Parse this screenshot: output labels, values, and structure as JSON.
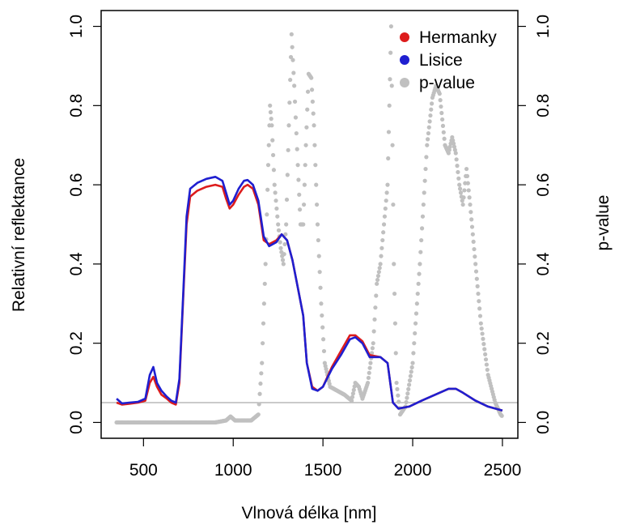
{
  "chart_data": {
    "type": "line",
    "title": "",
    "xlabel": "Vlnová délka [nm]",
    "ylabel": "Relativní reflektance",
    "y2label": "p-value",
    "xlim": [
      350,
      2500
    ],
    "ylim": [
      0,
      1
    ],
    "y2lim": [
      0,
      1
    ],
    "xticks": [
      "500",
      "1000",
      "1500",
      "2000",
      "2500"
    ],
    "yticks": [
      "0.0",
      "0.2",
      "0.4",
      "0.6",
      "0.8",
      "1.0"
    ],
    "y2ticks": [
      "0.0",
      "0.2",
      "0.4",
      "0.6",
      "0.8",
      "1.0"
    ],
    "grid": false,
    "legend_position": "top-right",
    "reference_line": {
      "axis": "y2",
      "value": 0.05,
      "color": "#aaaaaa"
    },
    "series": [
      {
        "name": "Hermanky",
        "color": "#dd1c1c",
        "style": "line",
        "axis": "left",
        "points": [
          [
            350,
            0.05
          ],
          [
            380,
            0.045
          ],
          [
            420,
            0.047
          ],
          [
            470,
            0.05
          ],
          [
            510,
            0.055
          ],
          [
            535,
            0.1
          ],
          [
            555,
            0.115
          ],
          [
            575,
            0.09
          ],
          [
            600,
            0.07
          ],
          [
            630,
            0.06
          ],
          [
            655,
            0.05
          ],
          [
            680,
            0.045
          ],
          [
            700,
            0.1
          ],
          [
            720,
            0.3
          ],
          [
            740,
            0.5
          ],
          [
            760,
            0.57
          ],
          [
            800,
            0.585
          ],
          [
            850,
            0.595
          ],
          [
            900,
            0.6
          ],
          [
            940,
            0.595
          ],
          [
            960,
            0.565
          ],
          [
            980,
            0.54
          ],
          [
            1000,
            0.55
          ],
          [
            1030,
            0.575
          ],
          [
            1060,
            0.595
          ],
          [
            1080,
            0.6
          ],
          [
            1110,
            0.59
          ],
          [
            1140,
            0.55
          ],
          [
            1170,
            0.46
          ],
          [
            1200,
            0.45
          ],
          [
            1240,
            0.46
          ],
          [
            1270,
            0.475
          ],
          [
            1300,
            0.46
          ],
          [
            1330,
            0.41
          ],
          [
            1360,
            0.34
          ],
          [
            1390,
            0.27
          ],
          [
            1410,
            0.15
          ],
          [
            1440,
            0.09
          ],
          [
            1470,
            0.08
          ],
          [
            1500,
            0.09
          ],
          [
            1550,
            0.14
          ],
          [
            1600,
            0.18
          ],
          [
            1650,
            0.22
          ],
          [
            1680,
            0.22
          ],
          [
            1720,
            0.205
          ],
          [
            1760,
            0.17
          ],
          [
            1820,
            0.165
          ],
          [
            1860,
            0.15
          ],
          [
            1890,
            0.05
          ],
          [
            1920,
            0.035
          ],
          [
            1980,
            0.04
          ],
          [
            2050,
            0.055
          ],
          [
            2100,
            0.065
          ],
          [
            2150,
            0.075
          ],
          [
            2200,
            0.085
          ],
          [
            2240,
            0.085
          ],
          [
            2280,
            0.075
          ],
          [
            2350,
            0.055
          ],
          [
            2420,
            0.04
          ],
          [
            2500,
            0.03
          ]
        ]
      },
      {
        "name": "Lisice",
        "color": "#1f1fd0",
        "style": "line",
        "axis": "left",
        "points": [
          [
            350,
            0.06
          ],
          [
            380,
            0.048
          ],
          [
            420,
            0.05
          ],
          [
            470,
            0.052
          ],
          [
            510,
            0.06
          ],
          [
            535,
            0.12
          ],
          [
            555,
            0.14
          ],
          [
            575,
            0.1
          ],
          [
            600,
            0.08
          ],
          [
            630,
            0.065
          ],
          [
            655,
            0.055
          ],
          [
            680,
            0.05
          ],
          [
            700,
            0.11
          ],
          [
            720,
            0.31
          ],
          [
            740,
            0.52
          ],
          [
            760,
            0.59
          ],
          [
            800,
            0.605
          ],
          [
            850,
            0.615
          ],
          [
            900,
            0.62
          ],
          [
            940,
            0.61
          ],
          [
            960,
            0.58
          ],
          [
            980,
            0.55
          ],
          [
            1000,
            0.56
          ],
          [
            1030,
            0.59
          ],
          [
            1060,
            0.61
          ],
          [
            1080,
            0.612
          ],
          [
            1110,
            0.6
          ],
          [
            1140,
            0.56
          ],
          [
            1170,
            0.47
          ],
          [
            1200,
            0.445
          ],
          [
            1240,
            0.455
          ],
          [
            1270,
            0.475
          ],
          [
            1300,
            0.46
          ],
          [
            1330,
            0.41
          ],
          [
            1360,
            0.34
          ],
          [
            1390,
            0.27
          ],
          [
            1410,
            0.15
          ],
          [
            1440,
            0.085
          ],
          [
            1470,
            0.08
          ],
          [
            1500,
            0.09
          ],
          [
            1550,
            0.135
          ],
          [
            1600,
            0.17
          ],
          [
            1650,
            0.21
          ],
          [
            1680,
            0.215
          ],
          [
            1720,
            0.2
          ],
          [
            1760,
            0.165
          ],
          [
            1820,
            0.165
          ],
          [
            1860,
            0.15
          ],
          [
            1890,
            0.05
          ],
          [
            1920,
            0.035
          ],
          [
            1980,
            0.04
          ],
          [
            2050,
            0.055
          ],
          [
            2100,
            0.065
          ],
          [
            2150,
            0.075
          ],
          [
            2200,
            0.085
          ],
          [
            2240,
            0.085
          ],
          [
            2280,
            0.075
          ],
          [
            2350,
            0.055
          ],
          [
            2420,
            0.04
          ],
          [
            2500,
            0.03
          ]
        ]
      },
      {
        "name": "p-value",
        "color": "#c0c0c0",
        "style": "points",
        "axis": "right",
        "points": [
          [
            350,
            0.0
          ],
          [
            500,
            0.0
          ],
          [
            700,
            0.0
          ],
          [
            900,
            0.0
          ],
          [
            960,
            0.005
          ],
          [
            985,
            0.015
          ],
          [
            1010,
            0.005
          ],
          [
            1100,
            0.005
          ],
          [
            1140,
            0.02
          ],
          [
            1160,
            0.15
          ],
          [
            1180,
            0.4
          ],
          [
            1195,
            0.65
          ],
          [
            1205,
            0.8
          ],
          [
            1215,
            0.75
          ],
          [
            1230,
            0.6
          ],
          [
            1250,
            0.5
          ],
          [
            1265,
            0.44
          ],
          [
            1280,
            0.4
          ],
          [
            1295,
            0.5
          ],
          [
            1310,
            0.75
          ],
          [
            1325,
            0.98
          ],
          [
            1340,
            0.85
          ],
          [
            1360,
            0.65
          ],
          [
            1375,
            0.5
          ],
          [
            1390,
            0.5
          ],
          [
            1405,
            0.7
          ],
          [
            1420,
            0.88
          ],
          [
            1435,
            0.87
          ],
          [
            1450,
            0.75
          ],
          [
            1470,
            0.5
          ],
          [
            1490,
            0.3
          ],
          [
            1510,
            0.15
          ],
          [
            1540,
            0.09
          ],
          [
            1580,
            0.08
          ],
          [
            1620,
            0.07
          ],
          [
            1660,
            0.055
          ],
          [
            1680,
            0.1
          ],
          [
            1700,
            0.09
          ],
          [
            1720,
            0.06
          ],
          [
            1750,
            0.1
          ],
          [
            1780,
            0.2
          ],
          [
            1800,
            0.35
          ],
          [
            1820,
            0.4
          ],
          [
            1840,
            0.5
          ],
          [
            1860,
            0.6
          ],
          [
            1870,
            0.8
          ],
          [
            1880,
            1.0
          ],
          [
            1895,
            0.4
          ],
          [
            1910,
            0.1
          ],
          [
            1930,
            0.02
          ],
          [
            1960,
            0.04
          ],
          [
            2000,
            0.15
          ],
          [
            2040,
            0.4
          ],
          [
            2080,
            0.7
          ],
          [
            2110,
            0.82
          ],
          [
            2130,
            0.85
          ],
          [
            2150,
            0.83
          ],
          [
            2180,
            0.7
          ],
          [
            2200,
            0.68
          ],
          [
            2220,
            0.72
          ],
          [
            2240,
            0.68
          ],
          [
            2260,
            0.6
          ],
          [
            2280,
            0.55
          ],
          [
            2300,
            0.64
          ],
          [
            2320,
            0.55
          ],
          [
            2350,
            0.4
          ],
          [
            2380,
            0.25
          ],
          [
            2420,
            0.12
          ],
          [
            2460,
            0.05
          ],
          [
            2490,
            0.02
          ],
          [
            2500,
            0.015
          ]
        ]
      }
    ]
  }
}
